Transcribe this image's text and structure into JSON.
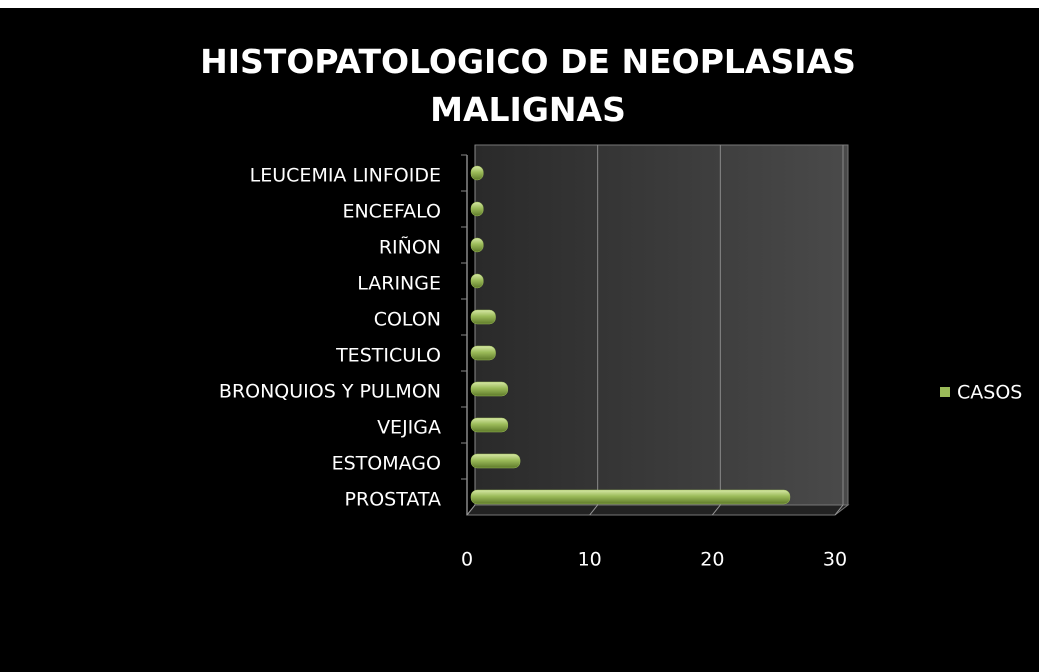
{
  "chart_data": {
    "type": "bar",
    "orientation": "horizontal",
    "title": "HISTOPATOLOGICO DE NEOPLASIAS MALIGNAS",
    "categories": [
      "LEUCEMIA LINFOIDE",
      "ENCEFALO",
      "RIÑON",
      "LARINGE",
      "COLON",
      "TESTICULO",
      "BRONQUIOS Y PULMON",
      "VEJIGA",
      "ESTOMAGO",
      "PROSTATA"
    ],
    "series": [
      {
        "name": "CASOS",
        "color": "#9bbb59",
        "values": [
          1,
          1,
          1,
          1,
          2,
          2,
          3,
          3,
          4,
          26
        ]
      }
    ],
    "xlim": [
      0,
      30
    ],
    "xticks": [
      0,
      10,
      20,
      30
    ],
    "grid": true,
    "legend": "right"
  }
}
